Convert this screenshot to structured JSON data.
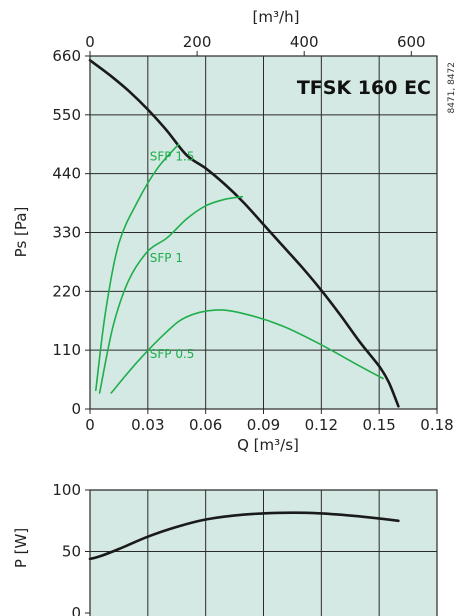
{
  "chart_data": [
    {
      "type": "line",
      "title": "TFSK 160 EC",
      "code": "8471, 8472",
      "xlabel": "Q [m³/s]",
      "ylabel": "Ps [Pa]",
      "top_axis_label": "[m³/h]",
      "xlim": [
        0,
        0.18
      ],
      "ylim": [
        0,
        660
      ],
      "x_ticks": [
        "0",
        "0.03",
        "0.06",
        "0.09",
        "0.12",
        "0.15",
        "0.18"
      ],
      "y_ticks": [
        "0",
        "110",
        "220",
        "330",
        "440",
        "550",
        "660"
      ],
      "top_ticks": [
        "0",
        "200",
        "400",
        "600"
      ],
      "top_tick_values": [
        0,
        200,
        400,
        600
      ],
      "grid": true,
      "colors": {
        "background": "#d4e9e3",
        "grid": "#2a2a2a",
        "fan_curve": "#1a1a1a",
        "sfp": "#1fae4b"
      },
      "series": [
        {
          "name": "",
          "points": [
            [
              0,
              652
            ],
            [
              0.01,
              625
            ],
            [
              0.02,
              595
            ],
            [
              0.03,
              560
            ],
            [
              0.04,
              520
            ],
            [
              0.05,
              475
            ],
            [
              0.06,
              450
            ],
            [
              0.07,
              420
            ],
            [
              0.08,
              385
            ],
            [
              0.09,
              345
            ],
            [
              0.1,
              305
            ],
            [
              0.11,
              265
            ],
            [
              0.12,
              222
            ],
            [
              0.13,
              175
            ],
            [
              0.14,
              125
            ],
            [
              0.15,
              80
            ],
            [
              0.155,
              50
            ],
            [
              0.16,
              5
            ]
          ]
        },
        {
          "name": "SFP 1.5",
          "points": [
            [
              0.003,
              35
            ],
            [
              0.008,
              180
            ],
            [
              0.015,
              310
            ],
            [
              0.025,
              390
            ],
            [
              0.035,
              450
            ],
            [
              0.046,
              495
            ]
          ]
        },
        {
          "name": "SFP 1",
          "points": [
            [
              0.005,
              30
            ],
            [
              0.012,
              155
            ],
            [
              0.02,
              240
            ],
            [
              0.03,
              295
            ],
            [
              0.04,
              320
            ],
            [
              0.05,
              355
            ],
            [
              0.06,
              380
            ],
            [
              0.07,
              392
            ],
            [
              0.079,
              397
            ]
          ]
        },
        {
          "name": "SFP 0.5",
          "points": [
            [
              0.011,
              30
            ],
            [
              0.025,
              90
            ],
            [
              0.04,
              145
            ],
            [
              0.05,
              172
            ],
            [
              0.065,
              185
            ],
            [
              0.08,
              178
            ],
            [
              0.1,
              155
            ],
            [
              0.12,
              120
            ],
            [
              0.14,
              80
            ],
            [
              0.152,
              57
            ]
          ]
        }
      ],
      "annotations": [
        {
          "text": "SFP 1.5",
          "x": 0.031,
          "y": 465
        },
        {
          "text": "SFP 1",
          "x": 0.031,
          "y": 275
        },
        {
          "text": "SFP 0.5",
          "x": 0.031,
          "y": 95
        }
      ]
    },
    {
      "type": "line",
      "xlabel": "",
      "ylabel": "P [W]",
      "xlim": [
        0,
        0.18
      ],
      "ylim": [
        0,
        100
      ],
      "y_ticks": [
        "0",
        "50",
        "100"
      ],
      "grid": true,
      "series": [
        {
          "name": "",
          "points": [
            [
              0,
              44
            ],
            [
              0.005,
              46
            ],
            [
              0.015,
              52
            ],
            [
              0.03,
              62
            ],
            [
              0.045,
              70
            ],
            [
              0.06,
              76
            ],
            [
              0.08,
              80
            ],
            [
              0.1,
              81.5
            ],
            [
              0.12,
              81
            ],
            [
              0.14,
              78.5
            ],
            [
              0.16,
              75
            ]
          ]
        }
      ]
    }
  ]
}
